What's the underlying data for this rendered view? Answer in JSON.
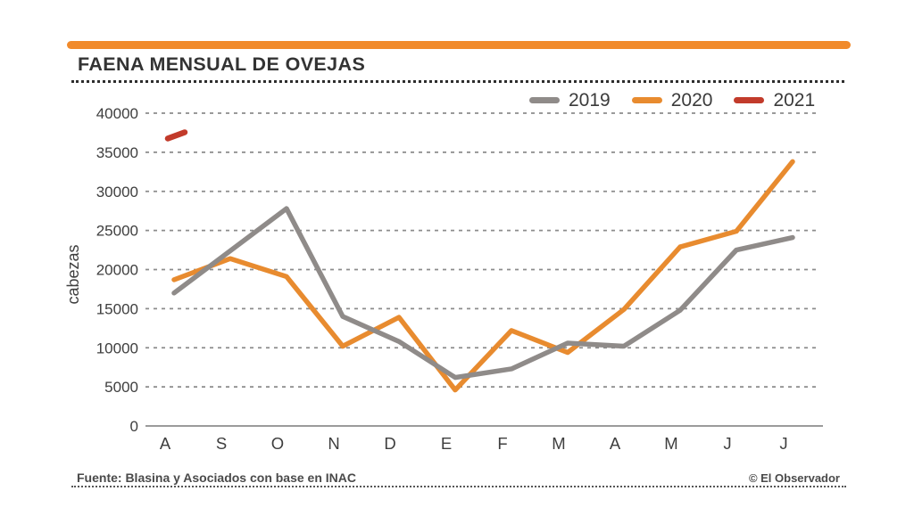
{
  "page": {
    "background": "#ffffff",
    "accent_color": "#F18A2B"
  },
  "header": {
    "title": "FAENA MENSUAL DE OVEJAS"
  },
  "legend": {
    "items": [
      {
        "label": "2019",
        "color": "#8F8B89"
      },
      {
        "label": "2020",
        "color": "#E88B2F"
      },
      {
        "label": "2021",
        "color": "#C23B2B"
      }
    ]
  },
  "chart_data": {
    "type": "line",
    "title": "FAENA MENSUAL DE OVEJAS",
    "ylabel": "cabezas",
    "xlabel": "",
    "categories": [
      "A",
      "S",
      "O",
      "N",
      "D",
      "E",
      "F",
      "M",
      "A",
      "M",
      "J",
      "J"
    ],
    "y_ticks": [
      0,
      5000,
      10000,
      15000,
      20000,
      25000,
      30000,
      35000,
      40000
    ],
    "ylim": [
      0,
      40000
    ],
    "grid": "dotted horizontal",
    "legend_position": "top-right",
    "series": [
      {
        "name": "2019",
        "color": "#8F8B89",
        "values": [
          17000,
          22400,
          27800,
          14000,
          10800,
          6200,
          7300,
          10600,
          10200,
          14800,
          22500,
          24100
        ]
      },
      {
        "name": "2020",
        "color": "#E88B2F",
        "values": [
          18700,
          21400,
          19100,
          10200,
          13900,
          4600,
          12200,
          9400,
          14900,
          22900,
          24900,
          33800
        ]
      },
      {
        "name": "2021",
        "color": "#C23B2B",
        "values": [
          37100
        ]
      }
    ]
  },
  "footer": {
    "source": "Fuente: Blasina y Asociados con base en INAC",
    "credit": "© El Observador"
  }
}
